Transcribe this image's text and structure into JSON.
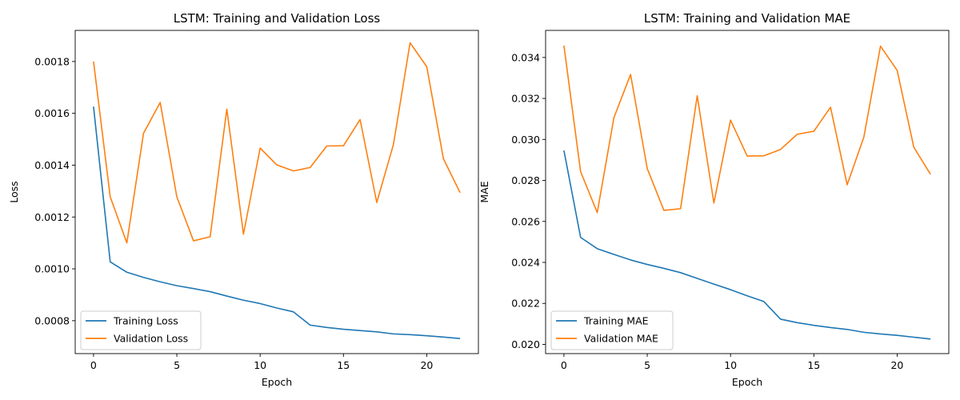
{
  "chart_data": [
    {
      "type": "line",
      "title": "LSTM: Training and Validation Loss",
      "xlabel": "Epoch",
      "ylabel": "Loss",
      "xlim": [
        -1.1,
        23.1
      ],
      "ylim": [
        0.000673,
        0.00192
      ],
      "xticks": [
        0,
        5,
        10,
        15,
        20
      ],
      "yticks": [
        0.0008,
        0.001,
        0.0012,
        0.0014,
        0.0016,
        0.0018
      ],
      "ytick_labels": [
        "0.0008",
        "0.0010",
        "0.0012",
        "0.0014",
        "0.0016",
        "0.0018"
      ],
      "legend_position": "lower-left",
      "grid": false,
      "x": [
        0,
        1,
        2,
        3,
        4,
        5,
        6,
        7,
        8,
        9,
        10,
        11,
        12,
        13,
        14,
        15,
        16,
        17,
        18,
        19,
        20,
        21,
        22
      ],
      "series": [
        {
          "name": "Training Loss",
          "color": "#1f77b4",
          "values": [
            0.001626,
            0.001027,
            0.000987,
            0.000967,
            0.00095,
            0.000935,
            0.000924,
            0.000912,
            0.000895,
            0.000879,
            0.000866,
            0.000849,
            0.000834,
            0.000783,
            0.000774,
            0.000767,
            0.000762,
            0.000757,
            0.000749,
            0.000746,
            0.000742,
            0.000737,
            0.000731
          ]
        },
        {
          "name": "Validation Loss",
          "color": "#ff7f0e",
          "values": [
            0.0018,
            0.001278,
            0.0011,
            0.001523,
            0.001642,
            0.001278,
            0.001108,
            0.001124,
            0.001616,
            0.001134,
            0.001466,
            0.001401,
            0.001378,
            0.001391,
            0.001474,
            0.001475,
            0.001576,
            0.001256,
            0.00148,
            0.001872,
            0.00178,
            0.001425,
            0.001294
          ]
        }
      ]
    },
    {
      "type": "line",
      "title": "LSTM: Training and Validation MAE",
      "xlabel": "Epoch",
      "ylabel": "MAE",
      "xlim": [
        -1.1,
        23.1
      ],
      "ylim": [
        0.01955,
        0.03532
      ],
      "xticks": [
        0,
        5,
        10,
        15,
        20
      ],
      "yticks": [
        0.02,
        0.022,
        0.024,
        0.026,
        0.028,
        0.03,
        0.032,
        0.034
      ],
      "ytick_labels": [
        "0.020",
        "0.022",
        "0.024",
        "0.026",
        "0.028",
        "0.030",
        "0.032",
        "0.034"
      ],
      "legend_position": "lower-left",
      "grid": false,
      "x": [
        0,
        1,
        2,
        3,
        4,
        5,
        6,
        7,
        8,
        9,
        10,
        11,
        12,
        13,
        14,
        15,
        16,
        17,
        18,
        19,
        20,
        21,
        22
      ],
      "series": [
        {
          "name": "Training MAE",
          "color": "#1f77b4",
          "values": [
            0.02946,
            0.02522,
            0.02467,
            0.02439,
            0.02412,
            0.0239,
            0.02371,
            0.0235,
            0.02322,
            0.02294,
            0.02267,
            0.02237,
            0.02209,
            0.02123,
            0.02106,
            0.02093,
            0.02082,
            0.02073,
            0.02059,
            0.02051,
            0.02044,
            0.02035,
            0.02026
          ]
        },
        {
          "name": "Validation MAE",
          "color": "#ff7f0e",
          "values": [
            0.03458,
            0.02843,
            0.02643,
            0.03106,
            0.03317,
            0.02858,
            0.02654,
            0.02662,
            0.03213,
            0.0269,
            0.03094,
            0.02919,
            0.0292,
            0.02951,
            0.03025,
            0.0304,
            0.03157,
            0.02779,
            0.03011,
            0.03455,
            0.03337,
            0.02962,
            0.0283
          ]
        }
      ]
    }
  ]
}
